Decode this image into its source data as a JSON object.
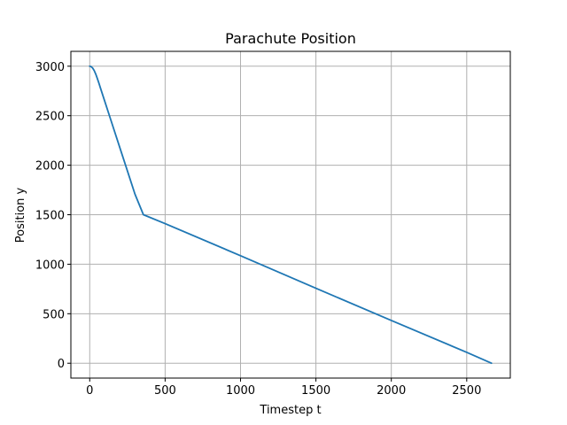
{
  "chart_data": {
    "type": "line",
    "title": "Parachute Position",
    "xlabel": "Timestep t",
    "ylabel": "Position y",
    "xlim": [
      -125,
      2789
    ],
    "ylim": [
      -150,
      3150
    ],
    "xticks": [
      0,
      500,
      1000,
      1500,
      2000,
      2500
    ],
    "yticks": [
      0,
      500,
      1000,
      1500,
      2000,
      2500,
      3000
    ],
    "grid": true,
    "series": [
      {
        "color": "#1f77b4",
        "x": [
          0,
          10,
          20,
          30,
          40,
          50,
          60,
          70,
          80,
          100,
          150,
          200,
          250,
          300,
          356,
          500,
          1000,
          1500,
          2000,
          2500,
          2664
        ],
        "y": [
          3000,
          2995,
          2980,
          2955,
          2920,
          2878,
          2833,
          2785,
          2738,
          2644,
          2410,
          2176,
          1942,
          1708,
          1500,
          1410,
          1086,
          757,
          432,
          110,
          0
        ]
      }
    ]
  }
}
